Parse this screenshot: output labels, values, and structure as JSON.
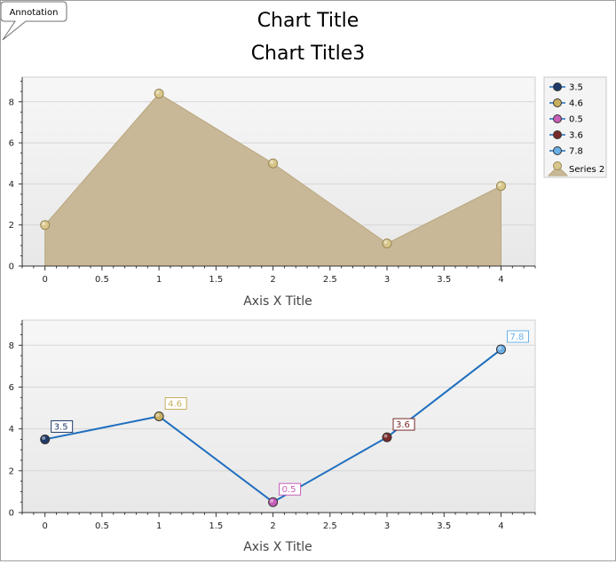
{
  "titles": [
    "Chart Title",
    "Chart Title3"
  ],
  "annotation": "Annotation",
  "colors": {
    "area_fill": "#c9b897",
    "area_stroke": "#b8a67e",
    "area_marker": "#d8c68a",
    "line": "#1f6fbf",
    "plot_bg": "#f0f0f0"
  },
  "legend": [
    {
      "name": "3.5",
      "color": "#1f3a68",
      "kind": "line-marker"
    },
    {
      "name": "4.6",
      "color": "#c8b060",
      "kind": "line-marker"
    },
    {
      "name": "0.5",
      "color": "#c65fb8",
      "kind": "line-marker"
    },
    {
      "name": "3.6",
      "color": "#7a2a2a",
      "kind": "line-marker"
    },
    {
      "name": "7.8",
      "color": "#6ab0e8",
      "kind": "line-marker"
    },
    {
      "name": "Series 2",
      "color": "#c9b897",
      "kind": "area"
    }
  ],
  "chart_data": [
    {
      "type": "area",
      "xlabel": "Axis X Title",
      "xlim": [
        -0.2,
        4.3
      ],
      "ylim": [
        0,
        9.2
      ],
      "xticks": [
        0,
        0.5,
        1,
        1.5,
        2,
        2.5,
        3,
        3.5,
        4
      ],
      "xtick_labels": [
        "0",
        "0.5",
        "1",
        "1.5",
        "2",
        "2.5",
        "3",
        "3.5",
        "4"
      ],
      "yticks": [
        0,
        2,
        4,
        6,
        8
      ],
      "ytick_labels": [
        "0",
        "2",
        "4",
        "6",
        "8"
      ],
      "grid": true,
      "legend": "right",
      "series": [
        {
          "name": "Series 2",
          "x": [
            0,
            1,
            2,
            3,
            4
          ],
          "y": [
            2.0,
            8.4,
            5.0,
            1.1,
            3.9
          ]
        }
      ]
    },
    {
      "type": "line",
      "xlabel": "Axis X Title",
      "xlim": [
        -0.2,
        4.3
      ],
      "ylim": [
        0,
        9.2
      ],
      "xticks": [
        0,
        0.5,
        1,
        1.5,
        2,
        2.5,
        3,
        3.5,
        4
      ],
      "xtick_labels": [
        "0",
        "0.5",
        "1",
        "1.5",
        "2",
        "2.5",
        "3",
        "3.5",
        "4"
      ],
      "yticks": [
        0,
        2,
        4,
        6,
        8
      ],
      "ytick_labels": [
        "0",
        "2",
        "4",
        "6",
        "8"
      ],
      "grid": true,
      "series": [
        {
          "x": [
            0,
            1,
            2,
            3,
            4
          ],
          "y": [
            3.5,
            4.6,
            0.5,
            3.6,
            7.8
          ],
          "labels": [
            "3.5",
            "4.6",
            "0.5",
            "3.6",
            "7.8"
          ],
          "point_colors": [
            "#1f3a68",
            "#c8b060",
            "#c65fb8",
            "#7a2a2a",
            "#6ab0e8"
          ]
        }
      ]
    }
  ]
}
